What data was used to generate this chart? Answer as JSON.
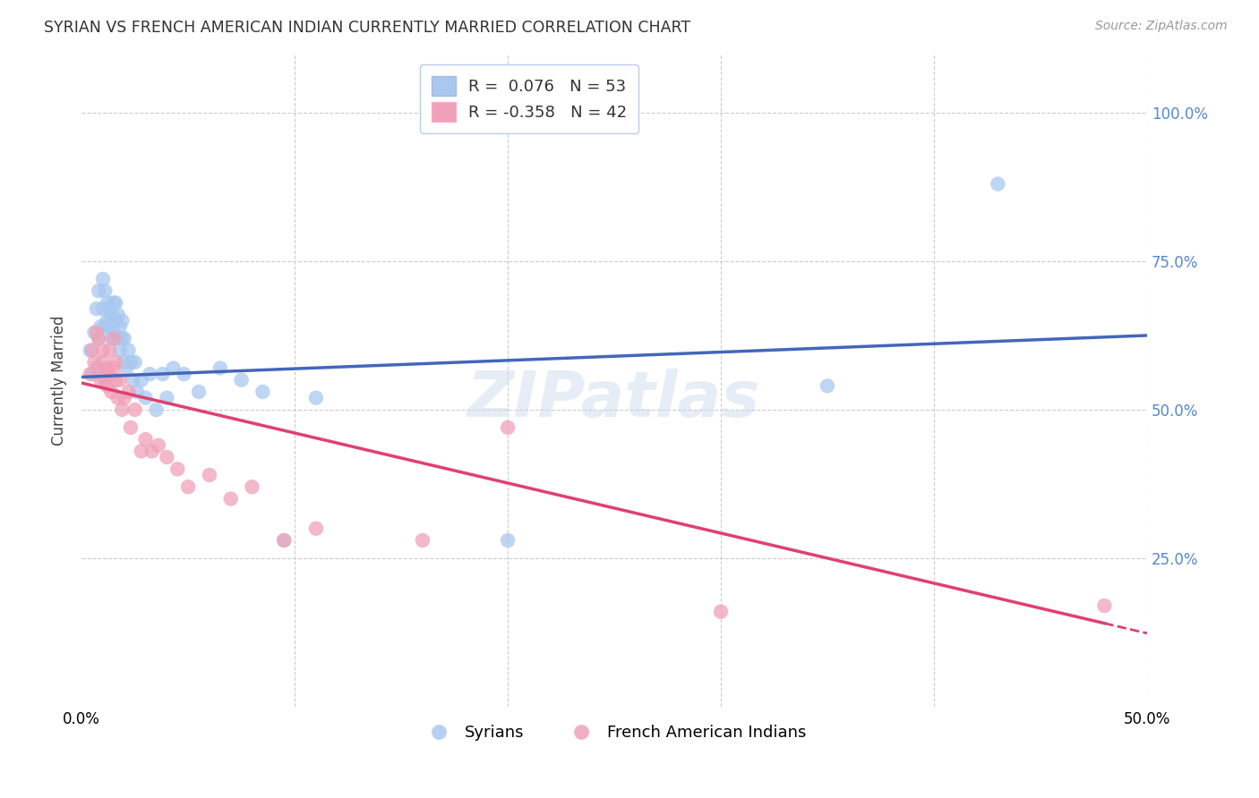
{
  "title": "SYRIAN VS FRENCH AMERICAN INDIAN CURRENTLY MARRIED CORRELATION CHART",
  "source": "Source: ZipAtlas.com",
  "ylabel": "Currently Married",
  "xlim": [
    0.0,
    0.5
  ],
  "ylim": [
    0.0,
    1.1
  ],
  "ytick_values": [
    0.25,
    0.5,
    0.75,
    1.0
  ],
  "ytick_labels": [
    "25.0%",
    "50.0%",
    "75.0%",
    "100.0%"
  ],
  "xtick_values": [
    0.0,
    0.1,
    0.2,
    0.3,
    0.4,
    0.5
  ],
  "xtick_labels": [
    "0.0%",
    "",
    "",
    "",
    "",
    "50.0%"
  ],
  "legend_blue_r": "0.076",
  "legend_blue_n": "53",
  "legend_pink_r": "-0.358",
  "legend_pink_n": "42",
  "blue_color": "#A8C8F0",
  "pink_color": "#F0A0B8",
  "trend_blue_color": "#4466BB",
  "trend_pink_color": "#E04070",
  "background_color": "#FFFFFF",
  "grid_color": "#CCCCCC",
  "tick_color": "#5588CC",
  "watermark": "ZIPatlas",
  "blue_points_x": [
    0.004,
    0.005,
    0.006,
    0.007,
    0.007,
    0.008,
    0.008,
    0.009,
    0.01,
    0.01,
    0.011,
    0.011,
    0.012,
    0.012,
    0.013,
    0.013,
    0.014,
    0.014,
    0.015,
    0.015,
    0.016,
    0.016,
    0.017,
    0.017,
    0.018,
    0.018,
    0.019,
    0.019,
    0.02,
    0.02,
    0.021,
    0.022,
    0.023,
    0.024,
    0.025,
    0.026,
    0.028,
    0.03,
    0.032,
    0.035,
    0.038,
    0.04,
    0.043,
    0.048,
    0.055,
    0.065,
    0.075,
    0.085,
    0.095,
    0.11,
    0.2,
    0.35,
    0.43
  ],
  "blue_points_y": [
    0.6,
    0.56,
    0.63,
    0.67,
    0.57,
    0.7,
    0.62,
    0.64,
    0.67,
    0.72,
    0.64,
    0.7,
    0.65,
    0.68,
    0.64,
    0.67,
    0.62,
    0.66,
    0.63,
    0.68,
    0.65,
    0.68,
    0.62,
    0.66,
    0.6,
    0.64,
    0.62,
    0.65,
    0.58,
    0.62,
    0.57,
    0.6,
    0.58,
    0.55,
    0.58,
    0.53,
    0.55,
    0.52,
    0.56,
    0.5,
    0.56,
    0.52,
    0.57,
    0.56,
    0.53,
    0.57,
    0.55,
    0.53,
    0.28,
    0.52,
    0.28,
    0.54,
    0.88
  ],
  "pink_points_x": [
    0.004,
    0.005,
    0.006,
    0.007,
    0.008,
    0.008,
    0.009,
    0.01,
    0.01,
    0.011,
    0.012,
    0.012,
    0.013,
    0.013,
    0.014,
    0.015,
    0.015,
    0.016,
    0.016,
    0.017,
    0.018,
    0.019,
    0.02,
    0.022,
    0.023,
    0.025,
    0.028,
    0.03,
    0.033,
    0.036,
    0.04,
    0.045,
    0.05,
    0.06,
    0.07,
    0.08,
    0.095,
    0.11,
    0.16,
    0.2,
    0.3,
    0.48
  ],
  "pink_points_y": [
    0.56,
    0.6,
    0.58,
    0.63,
    0.57,
    0.62,
    0.55,
    0.58,
    0.6,
    0.55,
    0.54,
    0.57,
    0.56,
    0.6,
    0.53,
    0.57,
    0.62,
    0.55,
    0.58,
    0.52,
    0.55,
    0.5,
    0.52,
    0.53,
    0.47,
    0.5,
    0.43,
    0.45,
    0.43,
    0.44,
    0.42,
    0.4,
    0.37,
    0.39,
    0.35,
    0.37,
    0.28,
    0.3,
    0.28,
    0.47,
    0.16,
    0.17
  ]
}
